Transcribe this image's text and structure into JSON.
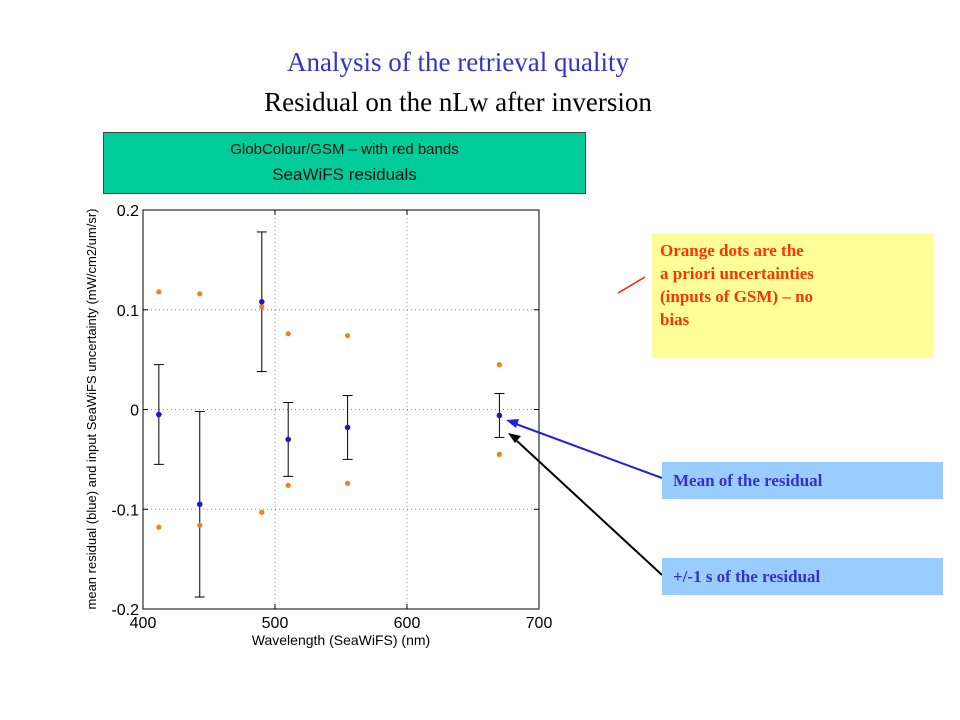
{
  "titles": {
    "line1": "Analysis of the retrieval quality",
    "line2": "Residual on the nLw after inversion"
  },
  "chart_banner": {
    "line1": "GlobColour/GSM – with red bands",
    "line2": "SeaWiFS residuals"
  },
  "annotations": {
    "orange_note": "Orange dots are the\n a priori uncertainties\n(inputs of GSM) – no\nbias",
    "mean_note": "Mean of the residual",
    "std_note": "+/-1 s of the residual"
  },
  "colors": {
    "mean_dot": "#1a1acc",
    "uncertainty_dot": "#f07f1e",
    "title_blue": "#3333cc",
    "orange_note_text": "#ff3300",
    "banner_bg": "#00cc99",
    "blue_note_bg": "#99ccff",
    "yellow_note_bg": "#ffff99"
  },
  "chart_data": {
    "type": "scatter",
    "xlabel": "Wavelength (SeaWiFS) (nm)",
    "ylabel": "mean residual (blue) and input SeaWiFS uncertainty (mW/cm2/um/sr)",
    "xlim": [
      400,
      700
    ],
    "ylim": [
      -0.2,
      0.2
    ],
    "x_ticks": [
      400,
      500,
      600,
      700
    ],
    "y_ticks": [
      -0.2,
      -0.1,
      0,
      0.1,
      0.2
    ],
    "y_tick_labels": [
      "-0.2",
      "-0.1",
      "0",
      "0.1",
      "0.2"
    ],
    "grid": "dotted at x=500, x=600, y=0, y=0.1, y=-0.1",
    "mean_residual": {
      "x": [
        412,
        443,
        490,
        510,
        555,
        670
      ],
      "mean": [
        -0.005,
        -0.095,
        0.108,
        -0.03,
        -0.018,
        -0.006
      ],
      "std": [
        0.05,
        0.093,
        0.07,
        0.037,
        0.032,
        0.022
      ]
    },
    "uncertainty": {
      "x": [
        412,
        443,
        490,
        510,
        555,
        670
      ],
      "plus": [
        0.118,
        0.116,
        0.103,
        0.076,
        0.074,
        0.045
      ],
      "minus": [
        -0.118,
        -0.116,
        -0.103,
        -0.076,
        -0.074,
        -0.045
      ]
    }
  }
}
